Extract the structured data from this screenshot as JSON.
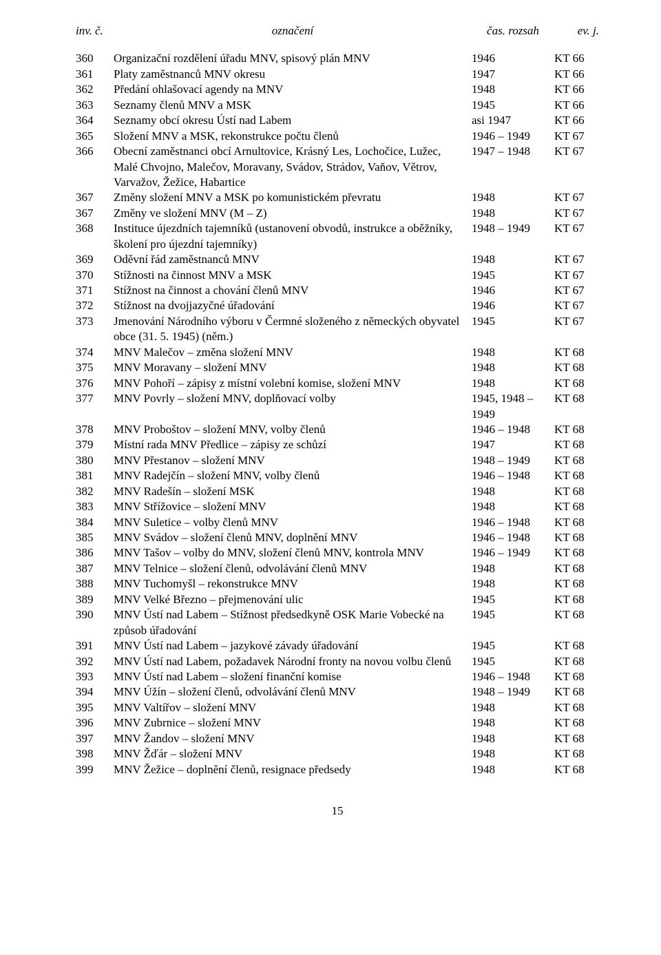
{
  "header": {
    "inv": "inv. č.",
    "ozn": "označení",
    "cas": "čas. rozsah",
    "ev": "ev. j."
  },
  "rows": [
    {
      "inv": "360",
      "ozn": "Organizační rozdělení úřadu MNV, spisový plán MNV",
      "cas": "1946",
      "ev": "KT 66"
    },
    {
      "inv": "361",
      "ozn": "Platy zaměstnanců MNV okresu",
      "cas": "1947",
      "ev": "KT 66"
    },
    {
      "inv": "362",
      "ozn": "Předání ohlašovací agendy na MNV",
      "cas": "1948",
      "ev": "KT 66"
    },
    {
      "inv": "363",
      "ozn": "Seznamy členů MNV a MSK",
      "cas": "1945",
      "ev": "KT 66"
    },
    {
      "inv": "364",
      "ozn": "Seznamy obcí okresu Ústí nad Labem",
      "cas": "asi 1947",
      "ev": "KT 66"
    },
    {
      "inv": "365",
      "ozn": "Složení MNV a MSK, rekonstrukce počtu členů",
      "cas": "1946 – 1949",
      "ev": "KT 67"
    },
    {
      "inv": "366",
      "ozn": "Obecní zaměstnanci obcí Arnultovice, Krásný Les, Lochočice, Lužec, Malé Chvojno, Malečov, Moravany, Svádov, Strádov, Vaňov, Větrov, Varvažov, Žežice, Habartice",
      "cas": "1947 – 1948",
      "ev": "KT 67"
    },
    {
      "inv": "367",
      "ozn": "Změny složení MNV a MSK po komunistickém převratu",
      "cas": "1948",
      "ev": "KT 67"
    },
    {
      "inv": "367",
      "ozn": "Změny ve složení MNV (M – Z)",
      "cas": "1948",
      "ev": "KT 67"
    },
    {
      "inv": "368",
      "ozn": "Instituce újezdních tajemníků (ustanovení obvodů, instrukce a oběžníky, školení pro újezdní tajemníky)",
      "cas": "1948 – 1949",
      "ev": "KT 67"
    },
    {
      "inv": "369",
      "ozn": "Oděvní řád zaměstnanců MNV",
      "cas": "1948",
      "ev": "KT 67"
    },
    {
      "inv": "370",
      "ozn": "Stížnosti na činnost MNV a MSK",
      "cas": "1945",
      "ev": "KT 67"
    },
    {
      "inv": "371",
      "ozn": "Stížnost na činnost a chování členů MNV",
      "cas": "1946",
      "ev": "KT 67"
    },
    {
      "inv": "372",
      "ozn": "Stížnost na dvojjazyčné úřadování",
      "cas": "1946",
      "ev": "KT 67"
    },
    {
      "inv": "373",
      "ozn": "Jmenování Národního výboru v Čermné složeného z německých obyvatel obce (31. 5. 1945) (něm.)",
      "cas": "1945",
      "ev": "KT 67"
    },
    {
      "inv": "374",
      "ozn": "MNV Malečov – změna složení MNV",
      "cas": "1948",
      "ev": "KT 68"
    },
    {
      "inv": "375",
      "ozn": "MNV Moravany – složení MNV",
      "cas": "1948",
      "ev": "KT 68"
    },
    {
      "inv": "376",
      "ozn": "MNV Pohoří – zápisy z místní volební komise, složení MNV",
      "cas": "1948",
      "ev": "KT 68"
    },
    {
      "inv": "377",
      "ozn": "MNV Povrly – složení MNV, doplňovací volby",
      "cas": "1945, 1948 – 1949",
      "ev": "KT 68"
    },
    {
      "inv": "378",
      "ozn": "MNV Proboštov – složení MNV, volby členů",
      "cas": "1946 – 1948",
      "ev": "KT 68"
    },
    {
      "inv": "379",
      "ozn": "Místní rada MNV Předlice – zápisy ze schůzí",
      "cas": "1947",
      "ev": "KT 68"
    },
    {
      "inv": "380",
      "ozn": "MNV Přestanov – složení MNV",
      "cas": "1948 – 1949",
      "ev": "KT 68"
    },
    {
      "inv": "381",
      "ozn": "MNV Radejčín – složení MNV, volby členů",
      "cas": "1946 – 1948",
      "ev": "KT 68"
    },
    {
      "inv": "382",
      "ozn": "MNV Radešín – složení MSK",
      "cas": "1948",
      "ev": "KT 68"
    },
    {
      "inv": "383",
      "ozn": "MNV Střížovice – složení MNV",
      "cas": "1948",
      "ev": "KT 68"
    },
    {
      "inv": "384",
      "ozn": "MNV Suletice – volby členů MNV",
      "cas": "1946 – 1948",
      "ev": "KT 68"
    },
    {
      "inv": "385",
      "ozn": "MNV Svádov – složení členů MNV, doplnění MNV",
      "cas": "1946 – 1948",
      "ev": "KT 68"
    },
    {
      "inv": "386",
      "ozn": "MNV Tašov – volby do MNV, složení členů MNV, kontrola MNV",
      "cas": "1946 – 1949",
      "ev": "KT 68"
    },
    {
      "inv": "387",
      "ozn": "MNV Telnice – složení členů, odvolávání členů MNV",
      "cas": "1948",
      "ev": "KT 68"
    },
    {
      "inv": "388",
      "ozn": "MNV Tuchomyšl – rekonstrukce MNV",
      "cas": "1948",
      "ev": "KT 68"
    },
    {
      "inv": "389",
      "ozn": "MNV Velké Březno – přejmenování ulic",
      "cas": "1945",
      "ev": "KT 68"
    },
    {
      "inv": "390",
      "ozn": "MNV Ústí nad Labem – Stížnost předsedkyně OSK Marie Vobecké na způsob úřadování",
      "cas": "1945",
      "ev": "KT 68"
    },
    {
      "inv": "391",
      "ozn": "MNV Ústí nad Labem – jazykové závady úřadování",
      "cas": "1945",
      "ev": "KT 68"
    },
    {
      "inv": "392",
      "ozn": "MNV Ústí nad Labem, požadavek Národní fronty na novou volbu členů",
      "cas": "1945",
      "ev": "KT 68"
    },
    {
      "inv": "393",
      "ozn": "MNV Ústí nad Labem – složení finanční komise",
      "cas": "1946 – 1948",
      "ev": "KT 68"
    },
    {
      "inv": "394",
      "ozn": "MNV Úžín – složení členů, odvolávání členů MNV",
      "cas": "1948 – 1949",
      "ev": "KT 68"
    },
    {
      "inv": "395",
      "ozn": "MNV Valtířov – složení MNV",
      "cas": "1948",
      "ev": "KT 68"
    },
    {
      "inv": "396",
      "ozn": "MNV Zubrnice – složení MNV",
      "cas": "1948",
      "ev": "KT 68"
    },
    {
      "inv": "397",
      "ozn": "MNV Žandov – složení MNV",
      "cas": "1948",
      "ev": "KT 68"
    },
    {
      "inv": "398",
      "ozn": "MNV Žďár – složení MNV",
      "cas": "1948",
      "ev": "KT 68"
    },
    {
      "inv": "399",
      "ozn": "MNV Žežice – doplnění členů, resignace předsedy",
      "cas": "1948",
      "ev": "KT 68"
    }
  ],
  "page_number": "15"
}
